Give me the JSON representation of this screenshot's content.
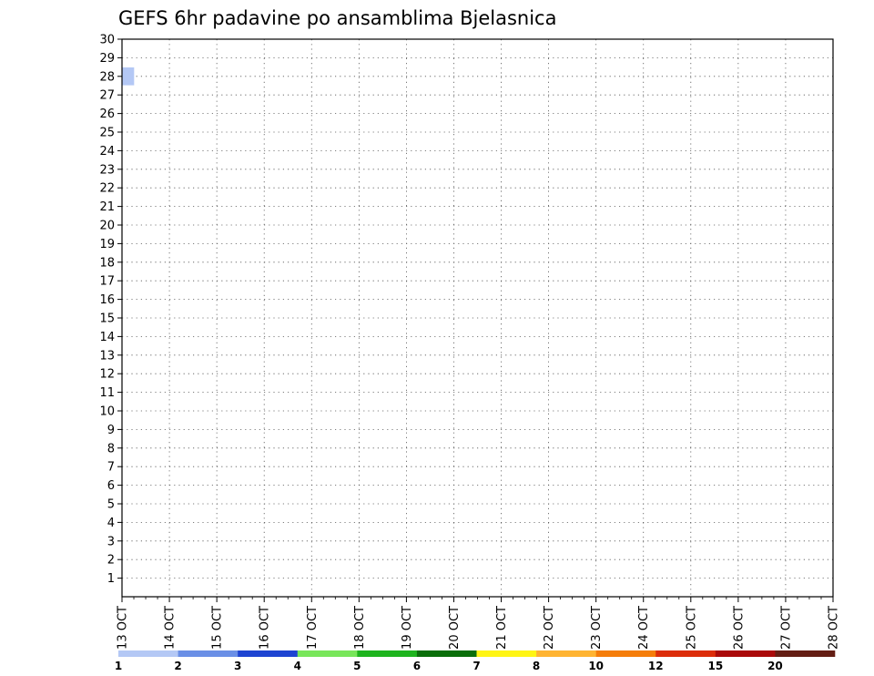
{
  "chart_data": {
    "type": "heatmap",
    "title": "GEFS 6hr padavine po ansamblima Bjelasnica",
    "x_ticks": [
      "13 OCT",
      "14 OCT",
      "15 OCT",
      "16 OCT",
      "17 OCT",
      "18 OCT",
      "19 OCT",
      "20 OCT",
      "21 OCT",
      "22 OCT",
      "23 OCT",
      "24 OCT",
      "25 OCT",
      "26 OCT",
      "27 OCT",
      "28 OCT"
    ],
    "y_ticks": [
      1,
      2,
      3,
      4,
      5,
      6,
      7,
      8,
      9,
      10,
      11,
      12,
      13,
      14,
      15,
      16,
      17,
      18,
      19,
      20,
      21,
      22,
      23,
      24,
      25,
      26,
      27,
      28,
      29,
      30
    ],
    "time_step": "6hr",
    "grid": "dotted",
    "colorbar": {
      "position": "bottom",
      "labels": [
        "1",
        "2",
        "3",
        "4",
        "5",
        "6",
        "7",
        "8",
        "10",
        "12",
        "15",
        "20"
      ],
      "colors": [
        "#b4c8f5",
        "#6a8fe6",
        "#1e44d2",
        "#78e65a",
        "#1eb41e",
        "#0a6e0a",
        "#fff514",
        "#ffb432",
        "#f57d0a",
        "#dc2d0a",
        "#aa0a0a",
        "#641e14"
      ]
    },
    "cells": [
      {
        "date": "13 OCT 00Z",
        "member": 28,
        "class": 1
      }
    ]
  }
}
